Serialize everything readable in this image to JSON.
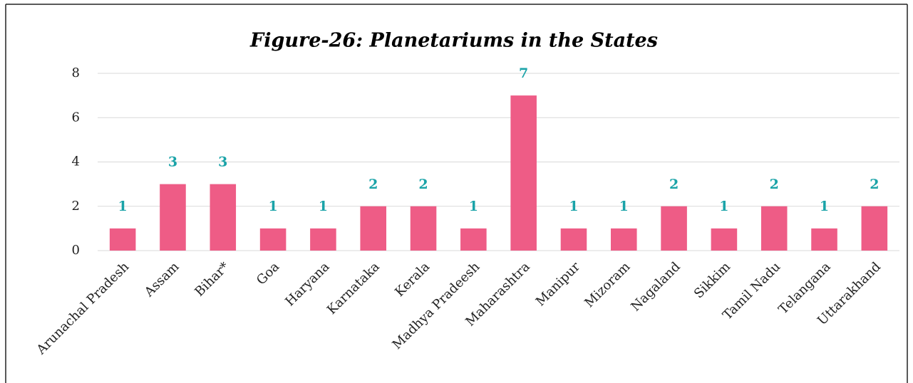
{
  "chart_data": {
    "type": "bar",
    "title": "Figure-26: Planetariums in the States",
    "categories": [
      "Arunachal Pradesh",
      "Assam",
      "Bihar*",
      "Goa",
      "Haryana",
      "Karnataka",
      "Kerala",
      "Madhya Pradeesh",
      "Maharashtra",
      "Manipur",
      "Mizoram",
      "Nagaland",
      "Sikkim",
      "Tamil Nadu",
      "Telangana",
      "Uttarakhand"
    ],
    "values": [
      1,
      3,
      3,
      1,
      1,
      2,
      2,
      1,
      7,
      1,
      1,
      2,
      1,
      2,
      1,
      2
    ],
    "color": "#ee5c86",
    "label_color": "#1aa3a8",
    "ylim": [
      0,
      8
    ],
    "yticks": [
      0,
      2,
      4,
      6,
      8
    ],
    "grid": true
  }
}
